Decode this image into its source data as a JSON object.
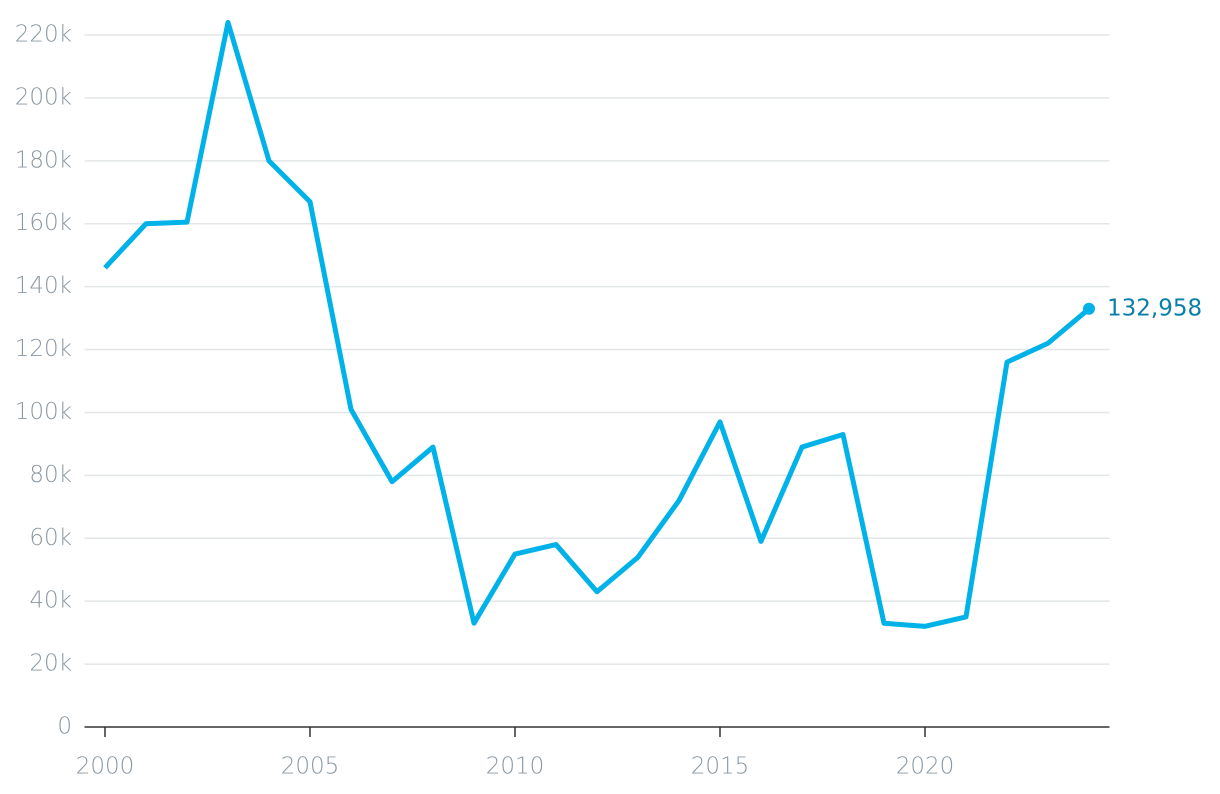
{
  "chart_data": {
    "type": "line",
    "x": [
      2000,
      2001,
      2002,
      2003,
      2004,
      2005,
      2006,
      2007,
      2008,
      2009,
      2010,
      2011,
      2012,
      2013,
      2014,
      2015,
      2016,
      2017,
      2018,
      2019,
      2020,
      2021,
      2022,
      2023,
      2024
    ],
    "series": [
      {
        "color": "#00b2e8",
        "values": [
          146000,
          160000,
          160500,
          224000,
          180000,
          167000,
          101000,
          78000,
          89000,
          33000,
          55000,
          58000,
          43000,
          54000,
          72000,
          97000,
          59000,
          89000,
          93000,
          33000,
          32000,
          35000,
          116000,
          122000,
          132958
        ],
        "value_labels": [
          null,
          null,
          null,
          null,
          null,
          null,
          null,
          null,
          null,
          null,
          null,
          null,
          null,
          null,
          null,
          null,
          null,
          null,
          null,
          null,
          null,
          null,
          null,
          null,
          "132,958"
        ]
      }
    ],
    "xlim": [
      1999.5,
      2024.5
    ],
    "xticks": [
      2000,
      2005,
      2010,
      2015,
      2020
    ],
    "ylim": [
      0,
      225000
    ],
    "yticks": [
      0,
      {
        "value": 20000,
        "label": "20k"
      },
      {
        "value": 40000,
        "label": "40k"
      },
      {
        "value": 60000,
        "label": "60k"
      },
      {
        "value": 80000,
        "label": "80k"
      },
      {
        "value": 100000,
        "label": "100k"
      },
      {
        "value": 120000,
        "label": "120k"
      },
      {
        "value": 140000,
        "label": "140k"
      },
      {
        "value": 160000,
        "label": "160k"
      },
      {
        "value": 180000,
        "label": "180k"
      },
      {
        "value": 200000,
        "label": "200k"
      },
      {
        "value": 220000,
        "label": "220k"
      }
    ],
    "grid": true,
    "label_color": "#0a7fa8"
  }
}
